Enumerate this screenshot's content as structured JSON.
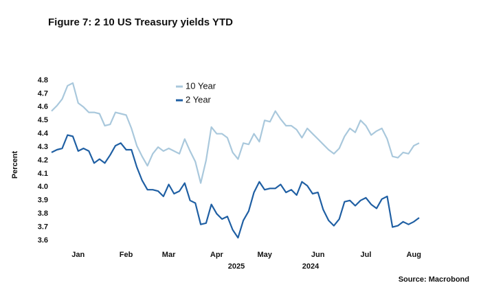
{
  "chart_data": {
    "type": "line",
    "title": "Figure 7: 2 10 US Treasury yields YTD",
    "y_label": "Percent",
    "source": "Source: Macrobond",
    "annotations": [
      "2025",
      "2024"
    ],
    "categories": [
      null,
      null,
      null,
      null,
      null,
      "Jan",
      null,
      null,
      null,
      null,
      null,
      null,
      null,
      null,
      "Feb",
      null,
      null,
      null,
      null,
      null,
      null,
      null,
      "Mar",
      null,
      null,
      null,
      null,
      null,
      null,
      null,
      null,
      "Apr",
      null,
      null,
      null,
      null,
      null,
      null,
      null,
      null,
      "May",
      null,
      null,
      null,
      null,
      null,
      null,
      null,
      null,
      null,
      "Jun",
      null,
      null,
      null,
      null,
      null,
      null,
      null,
      null,
      "Jul",
      null,
      null,
      null,
      null,
      null,
      null,
      null,
      null,
      "Aug",
      null
    ],
    "series": [
      {
        "name": "10 Year",
        "color": "#a9c8dc",
        "values": [
          4.57,
          4.61,
          4.66,
          4.76,
          4.78,
          4.63,
          4.6,
          4.56,
          4.56,
          4.55,
          4.46,
          4.47,
          4.56,
          4.55,
          4.54,
          4.44,
          4.31,
          4.23,
          4.16,
          4.25,
          4.3,
          4.27,
          4.29,
          4.27,
          4.25,
          4.36,
          4.27,
          4.19,
          4.03,
          4.2,
          4.45,
          4.4,
          4.4,
          4.37,
          4.26,
          4.21,
          4.33,
          4.32,
          4.4,
          4.34,
          4.5,
          4.49,
          4.57,
          4.51,
          4.46,
          4.46,
          4.43,
          4.37,
          4.44,
          4.4,
          4.36,
          4.32,
          4.28,
          4.25,
          4.29,
          4.38,
          4.44,
          4.41,
          4.5,
          4.46,
          4.39,
          4.42,
          4.44,
          4.36,
          4.23,
          4.22,
          4.26,
          4.25,
          4.31,
          4.33
        ]
      },
      {
        "name": "2 Year",
        "color": "#1f5fa3",
        "values": [
          4.26,
          4.28,
          4.29,
          4.39,
          4.38,
          4.27,
          4.29,
          4.27,
          4.18,
          4.21,
          4.18,
          4.24,
          4.31,
          4.33,
          4.28,
          4.28,
          4.15,
          4.05,
          3.98,
          3.98,
          3.97,
          3.93,
          4.02,
          3.95,
          3.97,
          4.03,
          3.9,
          3.88,
          3.72,
          3.73,
          3.87,
          3.8,
          3.76,
          3.78,
          3.68,
          3.62,
          3.75,
          3.82,
          3.96,
          4.04,
          3.98,
          3.99,
          3.99,
          4.02,
          3.96,
          3.98,
          3.94,
          4.04,
          4.01,
          3.95,
          3.96,
          3.83,
          3.75,
          3.71,
          3.76,
          3.89,
          3.9,
          3.86,
          3.9,
          3.92,
          3.87,
          3.84,
          3.91,
          3.93,
          3.7,
          3.71,
          3.74,
          3.72,
          3.74,
          3.77
        ]
      }
    ],
    "ylim": [
      3.6,
      4.8
    ],
    "yticks": [
      3.6,
      3.7,
      3.8,
      3.9,
      {
        "value": 4,
        "label": "4.0"
      },
      4.1,
      4.2,
      4.3,
      4.4,
      4.5,
      4.6,
      4.7,
      4.8
    ],
    "grid": false
  }
}
